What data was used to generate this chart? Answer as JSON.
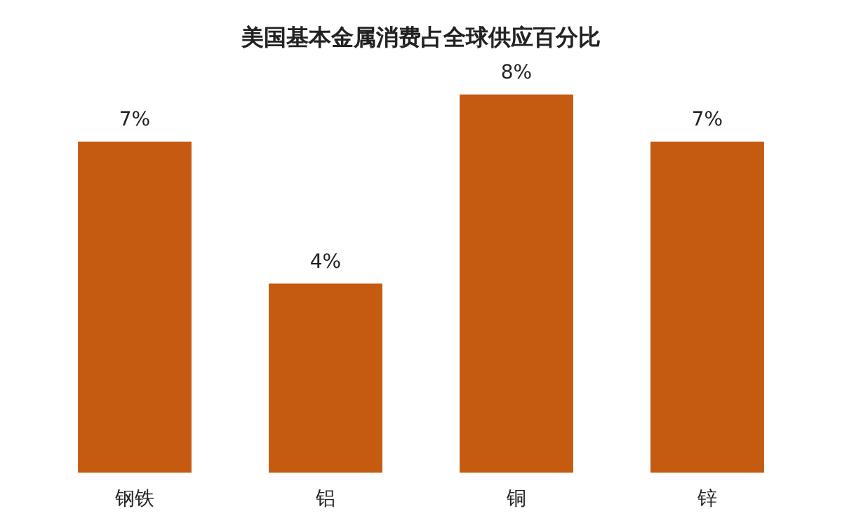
{
  "chart_data": {
    "type": "bar",
    "title": "美国基本金属消费占全球供应百分比",
    "categories": [
      "钢铁",
      "铝",
      "铜",
      "锌"
    ],
    "values": [
      7,
      4,
      8,
      7
    ],
    "value_labels": [
      "7%",
      "4%",
      "8%",
      "7%"
    ],
    "color": "#c55a11",
    "grid": false,
    "legend": false
  }
}
